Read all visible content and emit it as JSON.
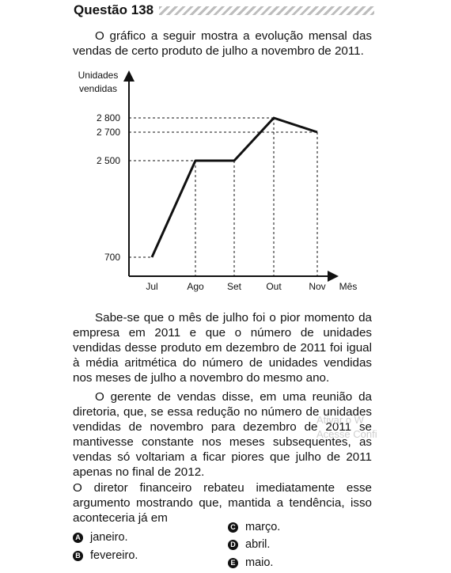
{
  "question": {
    "title": "Questão 138"
  },
  "intro": "O gráfico a seguir mostra a evolução mensal das vendas de certo produto de julho a novembro de 2011.",
  "chart_data": {
    "type": "line",
    "ylabel_line1": "Unidades",
    "ylabel_line2": "vendidas",
    "xlabel": "Mês",
    "categories": [
      "Jul",
      "Ago",
      "Set",
      "Out",
      "Nov"
    ],
    "values": [
      700,
      2500,
      2500,
      2800,
      2700
    ],
    "ytick_labels": [
      "700",
      "2 500",
      "2 700",
      "2 800"
    ],
    "grid": false
  },
  "paragraph2": "Sabe-se que o mês de julho foi o pior momento da empresa em 2011 e que o número de unidades vendidas desse produto em dezembro de 2011 foi igual à média aritmética do número de unidades vendidas nos meses de julho a novembro do mesmo ano.",
  "paragraph3": "O gerente de vendas disse, em uma reunião da diretoria, que, se essa redução no número de unidades vendidas de novembro para dezembro de 2011 se mantivesse constante nos meses subsequentes, as vendas só voltariam a ficar piores que julho de 2011 apenas no final de 2012.",
  "paragraph4": "O diretor financeiro rebateu imediatamente esse argumento mostrando que, mantida a tendência, isso aconteceria já em",
  "options": [
    {
      "letter": "A",
      "text": "janeiro."
    },
    {
      "letter": "B",
      "text": "fevereiro."
    },
    {
      "letter": "C",
      "text": "março."
    },
    {
      "letter": "D",
      "text": "abril."
    },
    {
      "letter": "E",
      "text": "maio."
    }
  ],
  "watermark": {
    "line1": "Ativar o W",
    "line2": "Acesse Confi"
  }
}
